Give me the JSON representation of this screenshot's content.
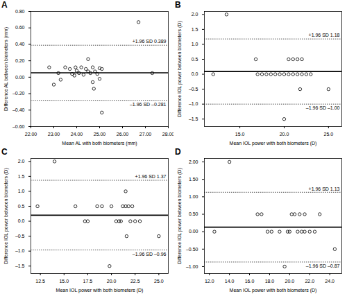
{
  "chart_data": [
    {
      "type": "scatter",
      "title": "A",
      "marker": "circle_open",
      "color": "#000000",
      "x_label": "Mean AL with both biometers (mm)",
      "y_label": "Difference AL between biometers (mm)",
      "xlim": [
        22.0,
        28.0
      ],
      "xticks": [
        {
          "value": 22,
          "label": "22.00"
        },
        {
          "value": 23,
          "label": "23.00"
        },
        {
          "value": 24,
          "label": "24.00"
        },
        {
          "value": 25,
          "label": "25.00"
        },
        {
          "value": 26,
          "label": "26.00"
        },
        {
          "value": 27,
          "label": "27.00"
        },
        {
          "value": 28,
          "label": "28.00"
        }
      ],
      "ylim": [
        -0.6,
        0.8
      ],
      "yticks": [
        {
          "value": -0.6,
          "label": "–0.60"
        },
        {
          "value": -0.4,
          "label": "–0.40"
        },
        {
          "value": -0.2,
          "label": "–0.20"
        },
        {
          "value": 0,
          "label": "0.00"
        },
        {
          "value": 0.2,
          "label": "0.20"
        },
        {
          "value": 0.4,
          "label": "0.40"
        },
        {
          "value": 0.6,
          "label": "0.60"
        },
        {
          "value": 0.8,
          "label": "0.80"
        }
      ],
      "x": [
        22.8,
        23.0,
        23.2,
        23.3,
        23.5,
        23.7,
        23.8,
        23.9,
        23.95,
        24.0,
        24.1,
        24.2,
        24.3,
        24.4,
        24.5,
        24.5,
        24.6,
        24.7,
        24.7,
        24.75,
        24.8,
        24.9,
        25.0,
        25.0,
        25.1,
        25.1,
        26.7,
        27.3
      ],
      "values": [
        0.12,
        -0.09,
        0.05,
        -0.03,
        0.12,
        0.1,
        0.04,
        0.02,
        0.12,
        0.08,
        0.05,
        0.12,
        0.03,
        0.1,
        0.07,
        0.22,
        0.05,
        0.12,
        -0.06,
        -0.14,
        0.07,
        0.04,
        0.11,
        -0.02,
        0.1,
        -0.43,
        0.67,
        0.05
      ],
      "reference_lines": [
        {
          "value": 0.054,
          "line_style": "solid"
        },
        {
          "value": 0.389,
          "line_style": "dotted",
          "label": "+1.96 SD 0.389"
        },
        {
          "value": -0.281,
          "line_style": "dotted",
          "label": "–1.96 SD –0.281"
        }
      ]
    },
    {
      "type": "scatter",
      "title": "B",
      "marker": "circle_open",
      "color": "#000000",
      "x_label": "Mean IOL power with both biometers (D)",
      "y_label": "Difference IOL power between biometers (D)",
      "xlim": [
        11.0,
        26.5
      ],
      "xticks": [
        {
          "value": 15,
          "label": "15.0"
        },
        {
          "value": 20,
          "label": "20.0"
        },
        {
          "value": 25,
          "label": "25.0"
        }
      ],
      "ylim": [
        -1.75,
        2.1
      ],
      "yticks": [
        {
          "value": -1.5,
          "label": "–1.5"
        },
        {
          "value": -1,
          "label": "–1.0"
        },
        {
          "value": -0.5,
          "label": "–0.5"
        },
        {
          "value": 0,
          "label": "0.0"
        },
        {
          "value": 0.5,
          "label": "0.5"
        },
        {
          "value": 1,
          "label": "1.0"
        },
        {
          "value": 1.5,
          "label": "1.5"
        },
        {
          "value": 2,
          "label": "2.0"
        }
      ],
      "x": [
        12.0,
        13.5,
        16.8,
        17.0,
        17.5,
        18.0,
        18.5,
        19.0,
        19.5,
        20.0,
        20.0,
        20.5,
        20.5,
        21.0,
        21.0,
        21.5,
        21.5,
        21.8,
        22.0,
        22.0,
        22.5,
        23.0,
        25.0
      ],
      "values": [
        0,
        2.0,
        0.5,
        0,
        0,
        0,
        0,
        0,
        0,
        -1.5,
        0,
        0.5,
        0,
        0,
        0.5,
        0.5,
        0,
        -0.5,
        0.5,
        0,
        0,
        0,
        -0.5
      ],
      "reference_lines": [
        {
          "value": 0.09,
          "line_style": "solid"
        },
        {
          "value": 1.18,
          "line_style": "dotted",
          "label": "+1.96 SD 1.18"
        },
        {
          "value": -1.0,
          "line_style": "dotted",
          "label": "–1.96 SD –1.00"
        }
      ]
    },
    {
      "type": "scatter",
      "title": "C",
      "marker": "circle_open",
      "color": "#000000",
      "x_label": "Mean IOL power with both biometers (D)",
      "y_label": "Difference IOL power between biometers (D)",
      "xlim": [
        11.5,
        26.0
      ],
      "xticks": [
        {
          "value": 12.5,
          "label": "12.5"
        },
        {
          "value": 15,
          "label": "15.0"
        },
        {
          "value": 17.5,
          "label": "17.5"
        },
        {
          "value": 20,
          "label": "20.0"
        },
        {
          "value": 22.5,
          "label": "22.5"
        },
        {
          "value": 25,
          "label": "25.0"
        }
      ],
      "ylim": [
        -1.75,
        2.1
      ],
      "yticks": [
        {
          "value": -1.5,
          "label": "–1.5"
        },
        {
          "value": -1,
          "label": "–1.0"
        },
        {
          "value": -0.5,
          "label": "–0.5"
        },
        {
          "value": 0,
          "label": "0.0"
        },
        {
          "value": 0.5,
          "label": "0.5"
        },
        {
          "value": 1,
          "label": "1.0"
        },
        {
          "value": 1.5,
          "label": "1.5"
        },
        {
          "value": 2,
          "label": "2.0"
        }
      ],
      "x": [
        12.2,
        14.0,
        16.2,
        17.2,
        17.5,
        18.5,
        19.0,
        19.8,
        20.0,
        20.5,
        20.8,
        21.0,
        21.2,
        21.5,
        21.5,
        21.6,
        21.8,
        22.0,
        22.2,
        22.5,
        23.0,
        25.0
      ],
      "values": [
        0.5,
        2.0,
        0.5,
        0,
        0,
        0.5,
        0.5,
        -1.5,
        0.5,
        0,
        0,
        0,
        0.5,
        0.5,
        1.0,
        -0.5,
        0.5,
        0,
        0.5,
        0,
        0,
        -0.5
      ],
      "reference_lines": [
        {
          "value": 0.2,
          "line_style": "solid"
        },
        {
          "value": 1.37,
          "line_style": "dotted",
          "label": "+1.96 SD 1.37"
        },
        {
          "value": -0.96,
          "line_style": "dotted",
          "label": "–1.96 SD –0.96"
        }
      ]
    },
    {
      "type": "scatter",
      "title": "D",
      "marker": "circle_open",
      "color": "#000000",
      "x_label": "Mean IOL power with both biometers (D)",
      "y_label": "Difference IOL power between biometers (D)",
      "xlim": [
        11.5,
        25.2
      ],
      "xticks": [
        {
          "value": 12,
          "label": "12.0"
        },
        {
          "value": 14,
          "label": "14.0"
        },
        {
          "value": 16,
          "label": "16.0"
        },
        {
          "value": 18,
          "label": "18.0"
        },
        {
          "value": 20,
          "label": "20.0"
        },
        {
          "value": 22,
          "label": "22.0"
        },
        {
          "value": 24,
          "label": "24.0"
        }
      ],
      "ylim": [
        -1.2,
        2.1
      ],
      "yticks": [
        {
          "value": -1,
          "label": "–1.00"
        },
        {
          "value": -0.5,
          "label": "–0.50"
        },
        {
          "value": 0,
          "label": "0.00"
        },
        {
          "value": 0.5,
          "label": "0.50"
        },
        {
          "value": 1,
          "label": "1.00"
        },
        {
          "value": 1.5,
          "label": "1.50"
        },
        {
          "value": 2,
          "label": "2.00"
        }
      ],
      "x": [
        12.5,
        14.0,
        16.8,
        17.2,
        17.8,
        18.2,
        19.0,
        19.5,
        19.8,
        20.0,
        20.2,
        20.5,
        20.8,
        21.0,
        21.2,
        21.5,
        21.5,
        22.0,
        22.5,
        23.0,
        24.5
      ],
      "values": [
        0,
        2.0,
        0.5,
        0.5,
        0,
        0,
        0,
        -1.0,
        0,
        0,
        0.5,
        0.5,
        0,
        0.5,
        0,
        0,
        0.5,
        0,
        0,
        0.5,
        -0.5
      ],
      "reference_lines": [
        {
          "value": 0.13,
          "line_style": "solid"
        },
        {
          "value": 1.13,
          "line_style": "dotted",
          "label": "+1.96 SD 1.13"
        },
        {
          "value": -0.87,
          "line_style": "dotted",
          "label": "–1.96 SD –0.87"
        }
      ]
    }
  ]
}
